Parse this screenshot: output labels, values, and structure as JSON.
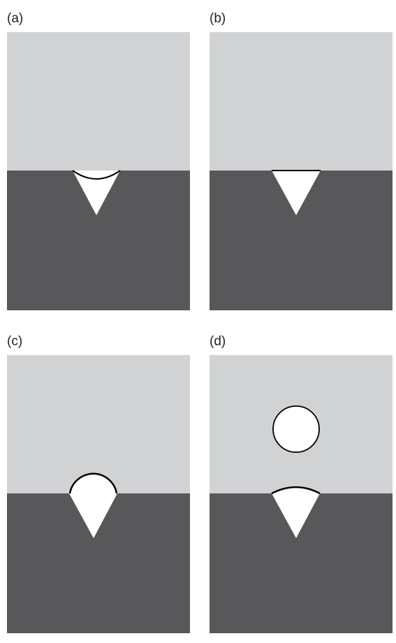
{
  "colors": {
    "vapor": "#d1d2d3",
    "solid": "#58585a",
    "bubble": "#ffffff",
    "outline": "#000000"
  },
  "panels": [
    {
      "label": "(a)",
      "stage": "concave-meniscus"
    },
    {
      "label": "(b)",
      "stage": "flat-meniscus"
    },
    {
      "label": "(c)",
      "stage": "bubble-growth"
    },
    {
      "label": "(d)",
      "stage": "bubble-departure"
    }
  ]
}
